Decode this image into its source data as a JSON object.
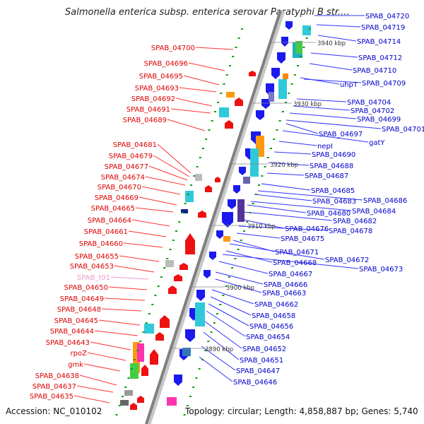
{
  "header": {
    "title": "Salmonella enterica subsp. enterica serovar Paratyphi B str...."
  },
  "footer": {
    "accession": "Accession: NC_010102",
    "summary": "Topology: circular; Length: 4,858,887 bp; Genes: 5,740"
  },
  "colors": {
    "left_label": "#dd0000",
    "right_label": "#0000cc",
    "rna_label": "#ee99cc",
    "left_line": "#ff3333",
    "right_line": "#3333ff",
    "axis": "#888888"
  },
  "scale_labels": [
    "3940 kbp",
    "3930 kbp",
    "3920 kbp",
    "3910 kbp",
    "3900 kbp",
    "3890 kbp"
  ],
  "left_genes": [
    "SPAB_04700",
    "SPAB_04696",
    "SPAB_04695",
    "SPAB_04693",
    "SPAB_04692",
    "SPAB_04691",
    "SPAB_04689",
    "SPAB_04681",
    "SPAB_04679",
    "SPAB_04677",
    "SPAB_04674",
    "SPAB_04670",
    "SPAB_04669",
    "SPAB_04665",
    "SPAB_04664",
    "SPAB_04661",
    "SPAB_04660",
    "SPAB_04655",
    "SPAB_04653",
    "SPAB_t01",
    "SPAB_04650",
    "SPAB_04649",
    "SPAB_04648",
    "SPAB_04645",
    "SPAB_04644",
    "SPAB_04643",
    "rpoZ",
    "gmk",
    "SPAB_04638",
    "SPAB_04637",
    "SPAB_04635"
  ],
  "right_genes": [
    "SPAB_04720",
    "SPAB_04719",
    "SPAB_04714",
    "SPAB_04712",
    "SPAB_04710",
    "uhpT",
    "SPAB_04709",
    "SPAB_04704",
    "SPAB_04702",
    "SPAB_04699",
    "SPAB_04701",
    "SPAB_04697",
    "gatY",
    "nepI",
    "SPAB_04690",
    "SPAB_04688",
    "SPAB_04687",
    "SPAB_04685",
    "SPAB_04686",
    "SPAB_04683",
    "SPAB_04684",
    "SPAB_04680",
    "SPAB_04682",
    "SPAB_04676",
    "SPAB_04678",
    "SPAB_04675",
    "SPAB_04671",
    "SPAB_04672",
    "SPAB_04668",
    "SPAB_04673",
    "SPAB_04667",
    "SPAB_04666",
    "SPAB_04663",
    "SPAB_04662",
    "SPAB_04658",
    "SPAB_04656",
    "SPAB_04654",
    "SPAB_04652",
    "SPAB_04651",
    "SPAB_04647",
    "SPAB_04646"
  ]
}
